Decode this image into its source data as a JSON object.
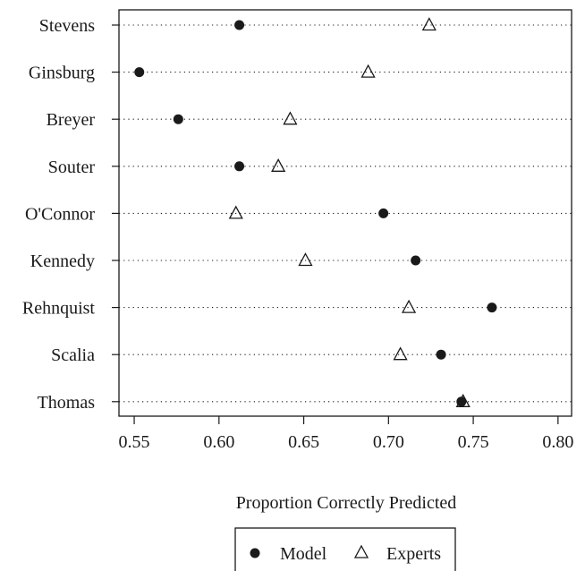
{
  "chart_data": {
    "type": "scatter",
    "xlabel": "Proportion Correctly Predicted",
    "xlim": [
      0.541,
      0.808
    ],
    "xticks": [
      0.55,
      0.6,
      0.65,
      0.7,
      0.75,
      0.8
    ],
    "xtick_labels": [
      "0.55",
      "0.60",
      "0.65",
      "0.70",
      "0.75",
      "0.80"
    ],
    "categories": [
      "Stevens",
      "Ginsburg",
      "Breyer",
      "Souter",
      "O'Connor",
      "Kennedy",
      "Rehnquist",
      "Scalia",
      "Thomas"
    ],
    "series": [
      {
        "name": "Model",
        "marker": "filled-circle",
        "values": [
          0.612,
          0.553,
          0.576,
          0.612,
          0.697,
          0.716,
          0.761,
          0.731,
          0.743
        ]
      },
      {
        "name": "Experts",
        "marker": "open-triangle",
        "values": [
          0.724,
          0.688,
          0.642,
          0.635,
          0.61,
          0.651,
          0.712,
          0.707,
          0.744
        ]
      }
    ],
    "grid": "dotted-horizontal",
    "legend_position": "bottom-center",
    "colors": {
      "ink": "#1a1a1a",
      "background": "#ffffff"
    }
  }
}
